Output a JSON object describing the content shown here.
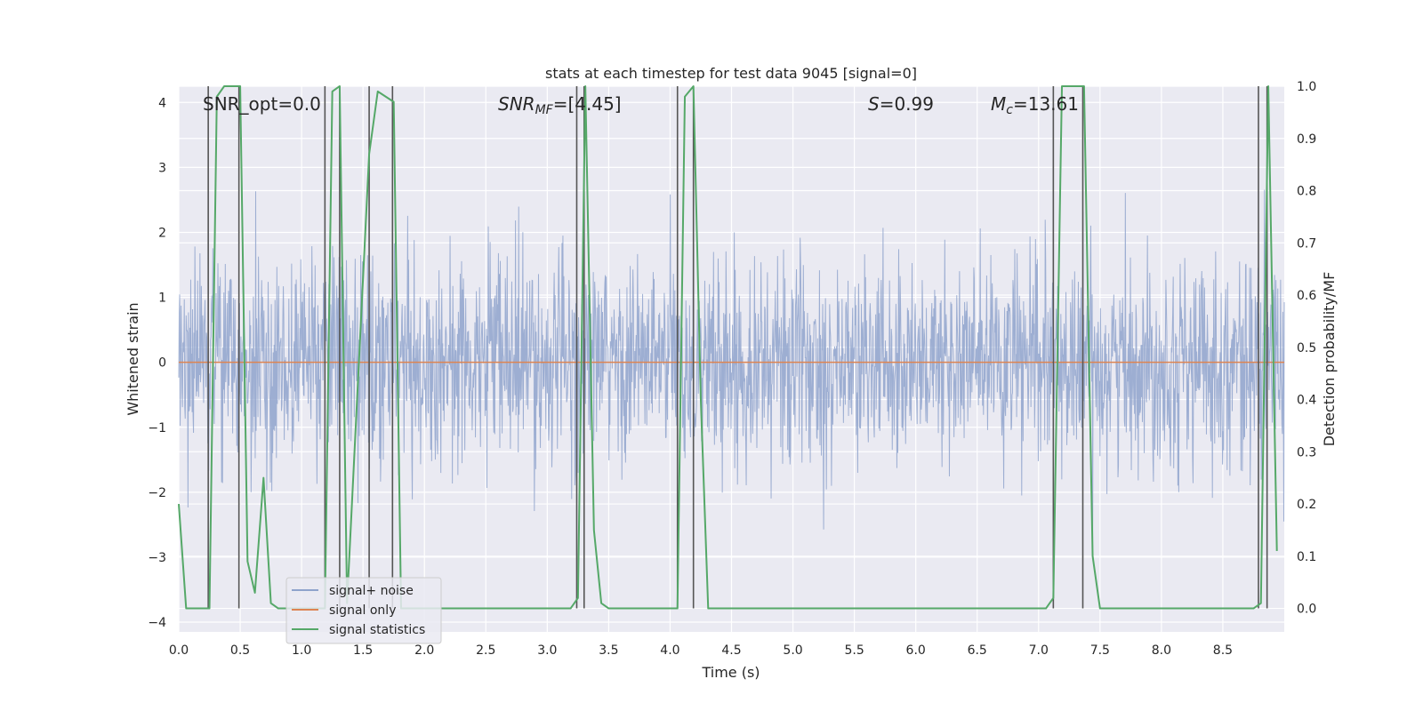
{
  "chart_data": {
    "type": "line",
    "title": "stats at each timestep for test data 9045 [signal=0]",
    "xlabel": "Time (s)",
    "ylabel_left": "Whitened strain",
    "ylabel_right": "Detection probability/MF",
    "xlim": [
      0.0,
      9.0
    ],
    "ylim_left": [
      -4.15,
      4.25
    ],
    "ylim_right": [
      -0.045,
      1.0
    ],
    "x_ticks": [
      "0.0",
      "0.5",
      "1.0",
      "1.5",
      "2.0",
      "2.5",
      "3.0",
      "3.5",
      "4.0",
      "4.5",
      "5.0",
      "5.5",
      "6.0",
      "6.5",
      "7.0",
      "7.5",
      "8.0",
      "8.5"
    ],
    "x_tick_values": [
      0.0,
      0.5,
      1.0,
      1.5,
      2.0,
      2.5,
      3.0,
      3.5,
      4.0,
      4.5,
      5.0,
      5.5,
      6.0,
      6.5,
      7.0,
      7.5,
      8.0,
      8.5
    ],
    "y_ticks_left": [
      "4",
      "3",
      "2",
      "1",
      "0",
      "−1",
      "−2",
      "−3",
      "−4"
    ],
    "y_tick_values_left": [
      4,
      3,
      2,
      1,
      0,
      -1,
      -2,
      -3,
      -4
    ],
    "y_ticks_right": [
      "1.0",
      "0.9",
      "0.8",
      "0.7",
      "0.6",
      "0.5",
      "0.4",
      "0.3",
      "0.2",
      "0.1",
      "0.0"
    ],
    "y_tick_values_right": [
      1.0,
      0.9,
      0.8,
      0.7,
      0.6,
      0.5,
      0.4,
      0.3,
      0.2,
      0.1,
      0.0
    ],
    "grid": true,
    "annotations": {
      "snr_opt": "SNR_opt=0.0",
      "snr_mf_label": "SNR",
      "snr_mf_sub": "MF",
      "snr_mf_value": "=[4.45]",
      "s_label": "S",
      "s_value": "=0.99",
      "mc_label": "M",
      "mc_sub": "c",
      "mc_value": "=13.61"
    },
    "legend": {
      "position": "lower-left",
      "entries": [
        "signal+ noise",
        "signal only",
        "signal statistics"
      ]
    },
    "series": [
      {
        "name": "signal+ noise",
        "axis": "left",
        "color": "#8fa3cc",
        "kind": "noise",
        "sigma": 0.78,
        "mean": 0.0
      },
      {
        "name": "signal only",
        "axis": "left",
        "color": "#dd8452",
        "x": [
          0.0,
          9.0
        ],
        "y": [
          0.0,
          0.0
        ]
      },
      {
        "name": "signal statistics",
        "axis": "right",
        "color": "#55a868",
        "x": [
          0.0,
          0.06,
          0.25,
          0.31,
          0.37,
          0.5,
          0.56,
          0.62,
          0.69,
          0.75,
          0.81,
          1.19,
          1.25,
          1.31,
          1.37,
          1.55,
          1.62,
          1.75,
          1.81,
          3.19,
          3.25,
          3.31,
          3.38,
          3.44,
          3.5,
          4.06,
          4.12,
          4.19,
          4.25,
          4.31,
          4.37,
          4.44,
          7.06,
          7.12,
          7.19,
          7.37,
          7.44,
          7.5,
          8.75,
          8.81,
          8.87,
          8.94
        ],
        "y": [
          0.2,
          0.0,
          0.0,
          0.98,
          1.0,
          1.0,
          0.09,
          0.03,
          0.25,
          0.01,
          0.0,
          0.0,
          0.99,
          1.0,
          0.01,
          0.87,
          0.99,
          0.97,
          0.0,
          0.0,
          0.02,
          1.0,
          0.15,
          0.01,
          0.0,
          0.0,
          0.98,
          1.0,
          0.4,
          0.0,
          0.0,
          0.0,
          0.0,
          0.02,
          1.0,
          1.0,
          0.1,
          0.0,
          0.0,
          0.01,
          1.0,
          0.11
        ]
      }
    ],
    "vertical_markers": [
      0.24,
      0.49,
      1.19,
      1.31,
      1.55,
      1.74,
      3.24,
      3.3,
      4.06,
      4.19,
      7.12,
      7.36,
      8.79,
      8.86
    ]
  }
}
